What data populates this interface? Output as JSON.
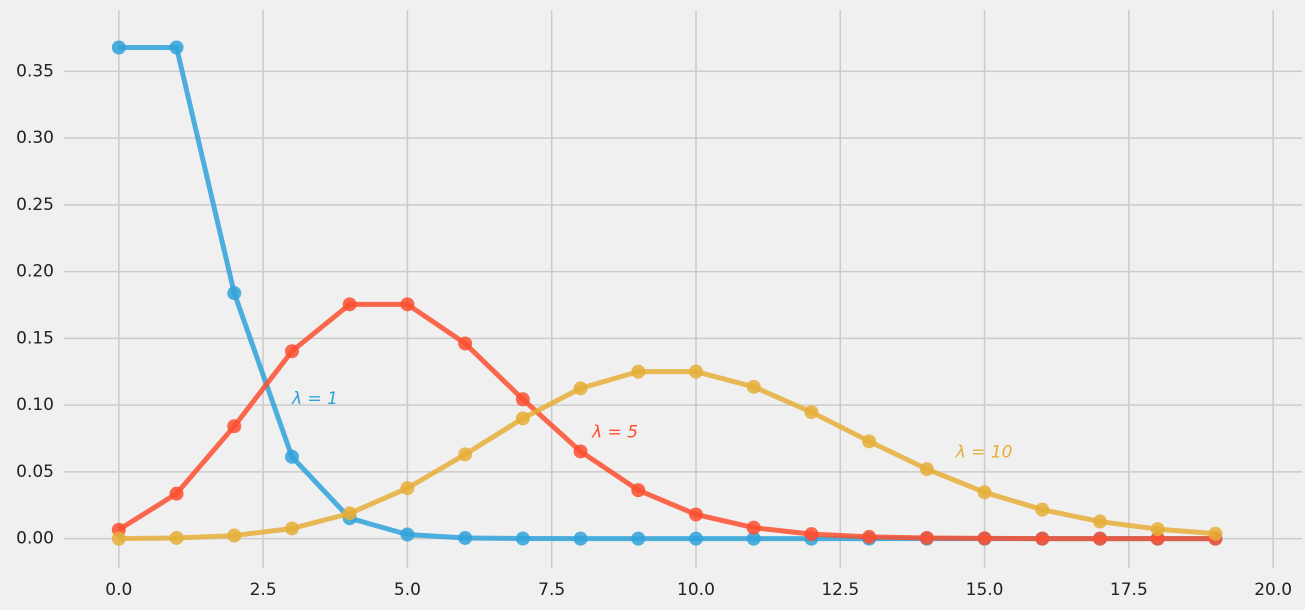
{
  "chart_data": {
    "type": "line",
    "x": [
      0,
      1,
      2,
      3,
      4,
      5,
      6,
      7,
      8,
      9,
      10,
      11,
      12,
      13,
      14,
      15,
      16,
      17,
      18,
      19
    ],
    "series": [
      {
        "name": "λ = 1",
        "color": "#30a2da",
        "values": [
          0.3679,
          0.3679,
          0.1839,
          0.0613,
          0.0153,
          0.0031,
          0.0005,
          0.0001,
          0,
          0,
          0,
          0,
          0,
          0,
          0,
          0,
          0,
          0,
          0,
          0
        ]
      },
      {
        "name": "λ = 5",
        "color": "#fc4f30",
        "values": [
          0.0067,
          0.0337,
          0.0842,
          0.1404,
          0.1755,
          0.1755,
          0.1462,
          0.1044,
          0.0653,
          0.0363,
          0.0181,
          0.0082,
          0.0034,
          0.0013,
          0.0005,
          0.0002,
          0,
          0,
          0,
          0
        ]
      },
      {
        "name": "λ = 10",
        "color": "#e5ae38",
        "values": [
          0,
          0.0005,
          0.0023,
          0.0076,
          0.0189,
          0.0378,
          0.0631,
          0.0901,
          0.1126,
          0.1251,
          0.1251,
          0.1137,
          0.0948,
          0.0729,
          0.0521,
          0.0347,
          0.0217,
          0.0128,
          0.0071,
          0.0037
        ]
      }
    ],
    "xlim": [
      -0.95,
      20.5
    ],
    "ylim": [
      -0.022,
      0.396
    ],
    "xticks": [
      {
        "value": 0,
        "label": "0.0"
      },
      2.5,
      {
        "value": 5,
        "label": "5.0"
      },
      7.5,
      {
        "value": 10,
        "label": "10.0"
      },
      12.5,
      {
        "value": 15,
        "label": "15.0"
      },
      17.5,
      {
        "value": 20,
        "label": "20.0"
      }
    ],
    "yticks": [
      {
        "value": 0,
        "label": "0.00"
      },
      0.05,
      {
        "value": 0.1,
        "label": "0.10"
      },
      0.15,
      {
        "value": 0.2,
        "label": "0.20"
      },
      0.25,
      {
        "value": 0.3,
        "label": "0.30"
      },
      0.35
    ],
    "grid": true
  }
}
